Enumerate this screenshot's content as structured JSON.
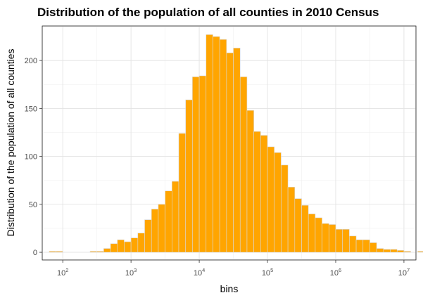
{
  "chart_data": {
    "type": "bar",
    "title": "Distribution of the population of all counties in 2010 Census",
    "xlabel": "bins",
    "ylabel": "Distribution of the population of all counties",
    "x_scale": "log10",
    "xlim": [
      50,
      15000000
    ],
    "ylim": [
      -8,
      236
    ],
    "grid": true,
    "x_ticks": [
      {
        "value": 100,
        "base": "10",
        "exp": "2"
      },
      {
        "value": 1000,
        "base": "10",
        "exp": "3"
      },
      {
        "value": 10000,
        "base": "10",
        "exp": "4"
      },
      {
        "value": 100000,
        "base": "10",
        "exp": "5"
      },
      {
        "value": 1000000,
        "base": "10",
        "exp": "6"
      },
      {
        "value": 10000000,
        "base": "10",
        "exp": "7"
      }
    ],
    "y_ticks": [
      0,
      50,
      100,
      150,
      200
    ],
    "bar_fill": "#FFA500",
    "bar_stroke": "#D9D9D9",
    "bins_log10": {
      "start": 1.8,
      "width": 0.1
    },
    "values": [
      1,
      1,
      0,
      0,
      0,
      0,
      1,
      1,
      4,
      9,
      13,
      11,
      15,
      20,
      34,
      45,
      50,
      64,
      74,
      124,
      159,
      183,
      184,
      227,
      225,
      222,
      208,
      213,
      183,
      148,
      126,
      122,
      110,
      104,
      91,
      68,
      56,
      49,
      40,
      36,
      30,
      29,
      24,
      24,
      17,
      13,
      13,
      10,
      4,
      3,
      3,
      2,
      1,
      0,
      1
    ]
  }
}
